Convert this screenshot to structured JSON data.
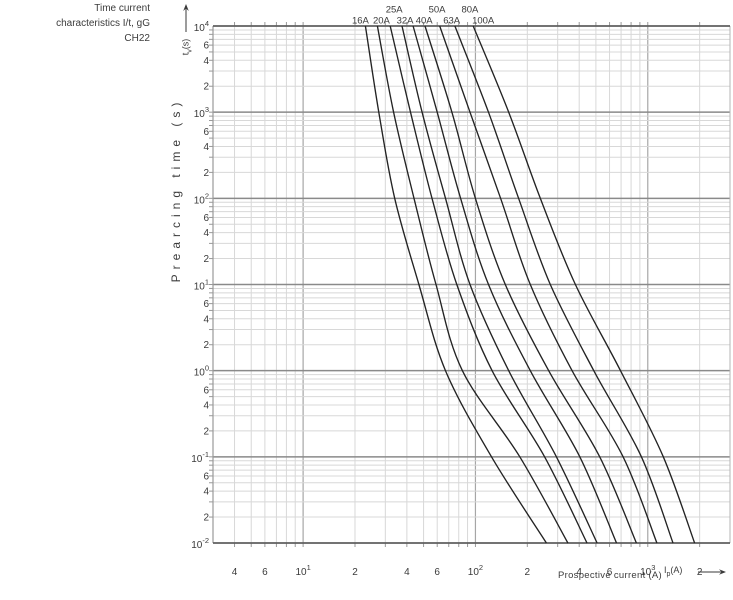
{
  "header": {
    "title_lines": [
      "Time current",
      "characteristics I/t, gG",
      "CH22"
    ]
  },
  "axes": {
    "y_unit": {
      "base": "t",
      "sub": "v",
      "suffix": "(s)"
    },
    "x_unit": {
      "base": "I",
      "sub": "p",
      "suffix": "(A)"
    }
  },
  "colors": {
    "curve": "#232323",
    "grid_minor": "#d8d8d8",
    "grid_major_h": "#8a8a8a",
    "grid_major_v": "#a6a6a6",
    "edge_h": "#5f5f5f",
    "edge_v": "#9a9a9a",
    "tick": "#999999",
    "text": "#3a3a3a"
  },
  "chart_data": {
    "type": "line",
    "title": "Time current characteristics I/t, gG CH22",
    "xlabel": "Prospective current (A)",
    "ylabel": "Prearcing time (s)",
    "x_scale": "log",
    "y_scale": "log",
    "xlim": [
      3,
      3000
    ],
    "ylim": [
      0.01,
      10000
    ],
    "grid": "on",
    "legend_position": "curve-top-labels",
    "times_s": [
      10000,
      1000,
      100,
      10,
      1,
      0.1,
      0.01
    ],
    "series": [
      {
        "name": "16A",
        "label_row": 2,
        "label_dx": -5,
        "currents_A": [
          23,
          27.5,
          34,
          47,
          67,
          124,
          258
        ]
      },
      {
        "name": "20A",
        "label_row": 2,
        "label_dx": 4,
        "currents_A": [
          27,
          33.5,
          44,
          59,
          84,
          181,
          344
        ]
      },
      {
        "name": "25A",
        "label_row": 1,
        "label_dx": 4,
        "currents_A": [
          32,
          42,
          56,
          78,
          125,
          252,
          444
        ]
      },
      {
        "name": "32A",
        "label_row": 2,
        "label_dx": 3,
        "currents_A": [
          37.5,
          49,
          67,
          93,
          156,
          295,
          508
        ]
      },
      {
        "name": "40A",
        "label_row": 2,
        "label_dx": 11,
        "currents_A": [
          43.5,
          60,
          82,
          119,
          208,
          403,
          658
        ]
      },
      {
        "name": "50A",
        "label_row": 1,
        "label_dx": 12,
        "currents_A": [
          51,
          73,
          100,
          149,
          266,
          526,
          859
        ]
      },
      {
        "name": "63A",
        "label_row": 2,
        "label_dx": 12,
        "currents_A": [
          62,
          93,
          140,
          208,
          364,
          719,
          1130
        ]
      },
      {
        "name": "80A",
        "label_row": 1,
        "label_dx": 15,
        "currents_A": [
          76,
          119,
          178,
          272,
          486,
          918,
          1400
        ]
      },
      {
        "name": "100A",
        "label_row": 2,
        "label_dx": 10,
        "currents_A": [
          97,
          156,
          238,
          380,
          695,
          1230,
          1870
        ]
      }
    ],
    "x_tick_labels": [
      {
        "value": 4,
        "text": "4"
      },
      {
        "value": 6,
        "text": "6"
      },
      {
        "value": 10,
        "text": "10",
        "exp": "1"
      },
      {
        "value": 20,
        "text": "2"
      },
      {
        "value": 40,
        "text": "4"
      },
      {
        "value": 60,
        "text": "6"
      },
      {
        "value": 100,
        "text": "10",
        "exp": "2"
      },
      {
        "value": 200,
        "text": "2"
      },
      {
        "value": 400,
        "text": "4"
      },
      {
        "value": 600,
        "text": "6"
      },
      {
        "value": 1000,
        "text": "10",
        "exp": "3"
      },
      {
        "value": 2000,
        "text": "2"
      }
    ],
    "y_tick_labels": [
      {
        "value": 10000,
        "text": "10",
        "exp": "4"
      },
      {
        "value": 6000,
        "text": "6"
      },
      {
        "value": 4000,
        "text": "4"
      },
      {
        "value": 2000,
        "text": "2"
      },
      {
        "value": 1000,
        "text": "10",
        "exp": "3"
      },
      {
        "value": 600,
        "text": "6"
      },
      {
        "value": 400,
        "text": "4"
      },
      {
        "value": 200,
        "text": "2"
      },
      {
        "value": 100,
        "text": "10",
        "exp": "2"
      },
      {
        "value": 60,
        "text": "6"
      },
      {
        "value": 40,
        "text": "4"
      },
      {
        "value": 20,
        "text": "2"
      },
      {
        "value": 10,
        "text": "10",
        "exp": "1"
      },
      {
        "value": 6,
        "text": "6"
      },
      {
        "value": 4,
        "text": "4"
      },
      {
        "value": 2,
        "text": "2"
      },
      {
        "value": 1,
        "text": "10",
        "exp": "0"
      },
      {
        "value": 0.6,
        "text": "6"
      },
      {
        "value": 0.4,
        "text": "4"
      },
      {
        "value": 0.2,
        "text": "2"
      },
      {
        "value": 0.1,
        "text": "10",
        "exp": "-1"
      },
      {
        "value": 0.06,
        "text": "6"
      },
      {
        "value": 0.04,
        "text": "4"
      },
      {
        "value": 0.02,
        "text": "2"
      },
      {
        "value": 0.01,
        "text": "10",
        "exp": "-2"
      }
    ]
  }
}
